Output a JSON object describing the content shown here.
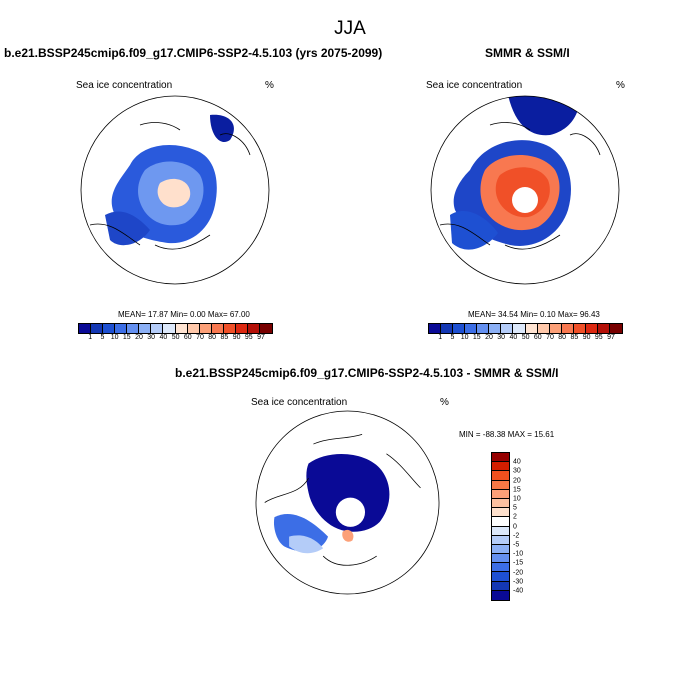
{
  "figure": {
    "title": "JJA"
  },
  "panels": {
    "model": {
      "title": "b.e21.BSSP245cmip6.f09_g17.CMIP6-SSP2-4.5.103 (yrs 2075-2099)",
      "left_label": "Sea ice concentration",
      "right_label": "%",
      "stats": "MEAN=  17.87  Min=    0.00  Max=   67.00"
    },
    "obs": {
      "title": "SMMR & SSM/I",
      "left_label": "Sea ice concentration",
      "right_label": "%",
      "stats": "MEAN=  34.54  Min=    0.10  Max=   96.43"
    },
    "diff": {
      "title": "b.e21.BSSP245cmip6.f09_g17.CMIP6-SSP2-4.5.103 - SMMR & SSM/I",
      "left_label": "Sea ice concentration",
      "right_label": "%",
      "stats": "MIN = -88.38 MAX =  15.61"
    }
  },
  "colorbars": {
    "concentration": {
      "labels": [
        "1",
        "5",
        "10",
        "15",
        "20",
        "30",
        "40",
        "50",
        "60",
        "70",
        "80",
        "85",
        "90",
        "95",
        "97"
      ],
      "colors": [
        "#0a0a96",
        "#1438b4",
        "#1e50d2",
        "#3c6ee6",
        "#6490f0",
        "#8cb0f5",
        "#b4ccf8",
        "#dce8fa",
        "#ffe4d2",
        "#ffc8aa",
        "#fca078",
        "#f87850",
        "#f05028",
        "#dc2810",
        "#b41008",
        "#780000"
      ]
    },
    "difference": {
      "labels": [
        "40",
        "30",
        "20",
        "15",
        "10",
        "5",
        "2",
        "0",
        "-2",
        "-5",
        "-10",
        "-15",
        "-20",
        "-30",
        "-40"
      ],
      "colors": [
        "#960000",
        "#d21e00",
        "#f0501e",
        "#f87846",
        "#fca078",
        "#fcc0a0",
        "#fee0cc",
        "#ffffff",
        "#dce8fa",
        "#b4ccf8",
        "#8cb0f5",
        "#6490f0",
        "#3c6ee6",
        "#1e50d2",
        "#1438b4",
        "#0a0a96"
      ]
    }
  }
}
